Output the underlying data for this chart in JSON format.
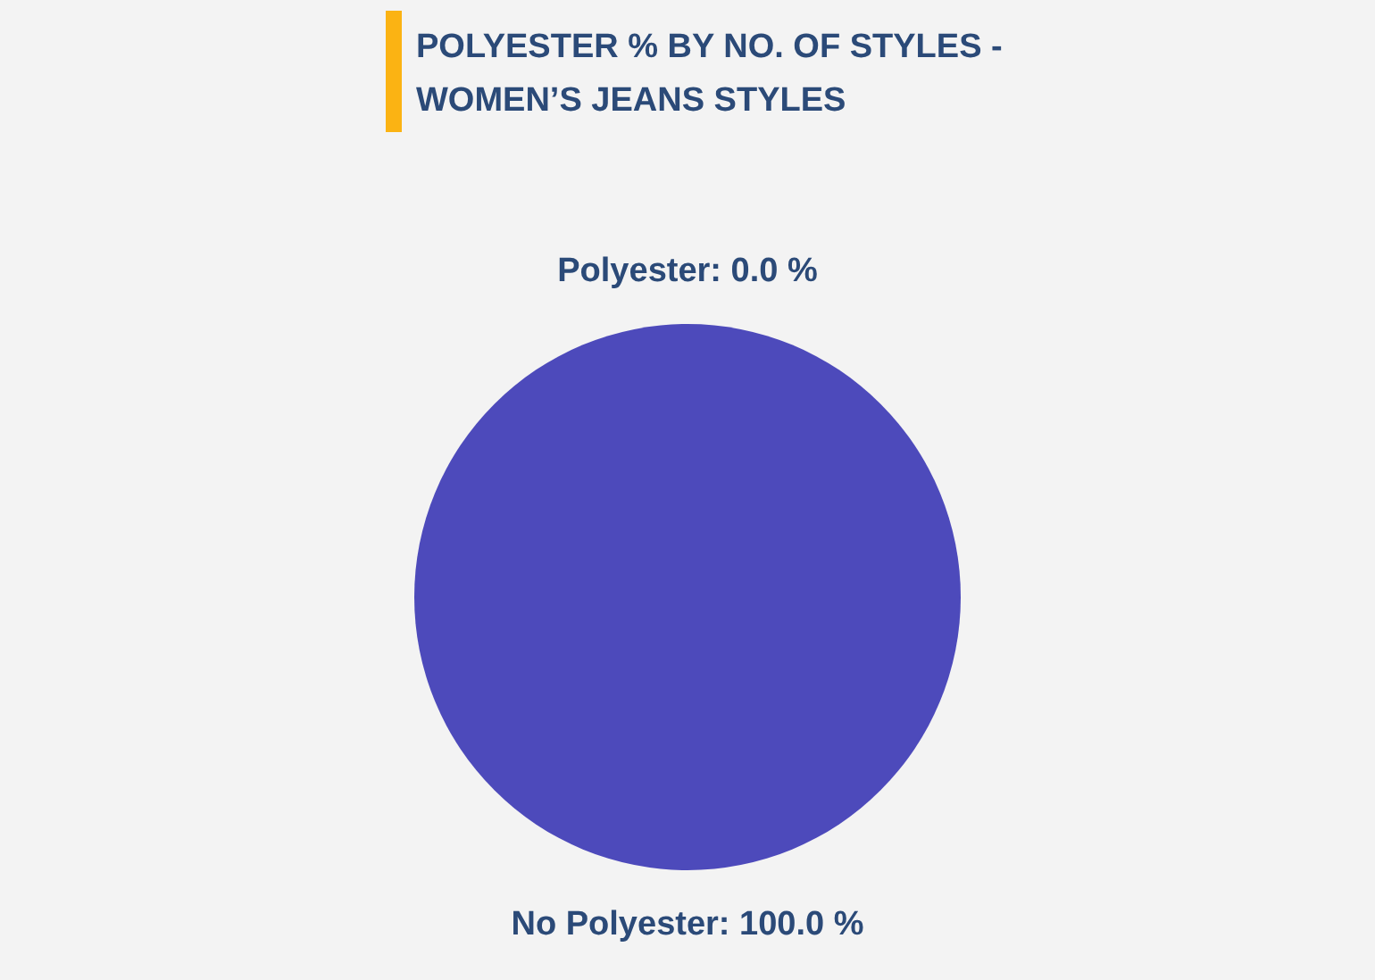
{
  "chart_data": {
    "type": "pie",
    "title": "POLYESTER % BY NO. OF STYLES - WOMEN’S JEANS STYLES",
    "categories": [
      "Polyester",
      "No Polyester"
    ],
    "values": [
      0.0,
      100.0
    ],
    "colors": [
      "#29a8e0",
      "#4d4abb"
    ],
    "value_labels": [
      ": 0.0 %",
      ": 100.0 %"
    ],
    "legend": false
  }
}
